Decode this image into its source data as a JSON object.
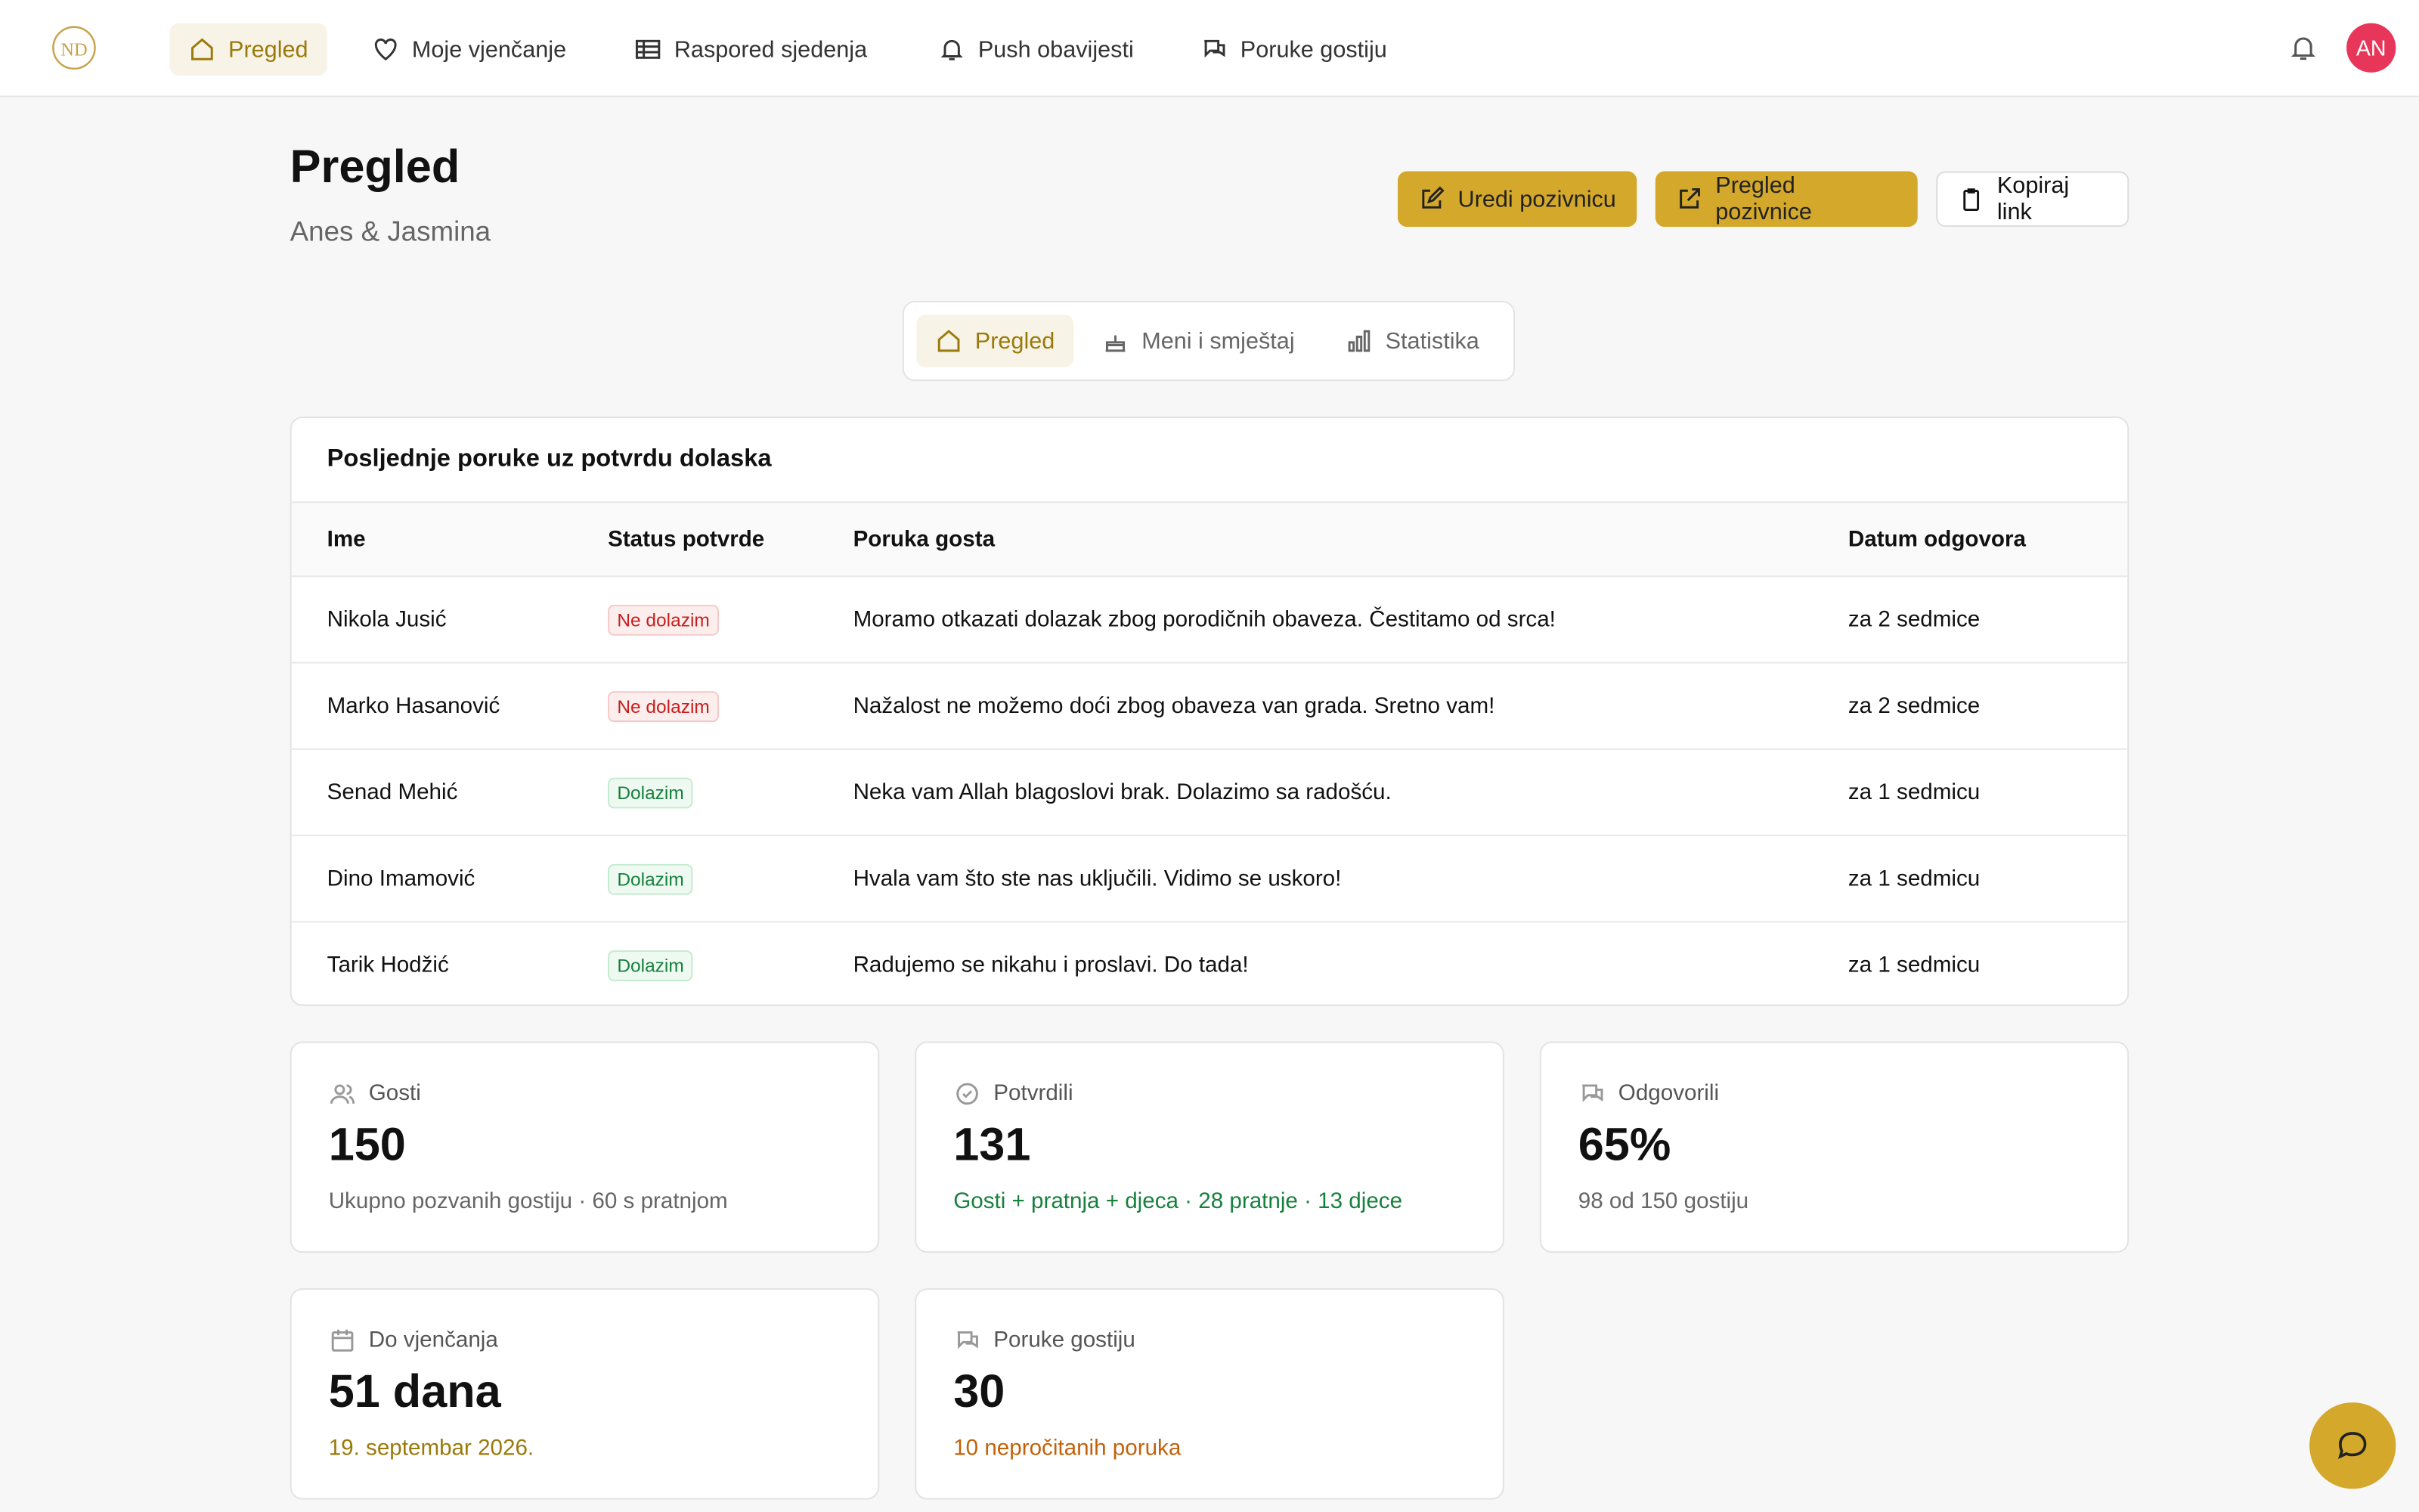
{
  "nav": {
    "items": [
      "Pregled",
      "Moje vjenčanje",
      "Raspored sjedenja",
      "Push obavijesti",
      "Poruke gostiju"
    ],
    "avatar": "AN"
  },
  "header": {
    "title": "Pregled",
    "subtitle": "Anes & Jasmina",
    "buttons": [
      "Uredi pozivnicu",
      "Pregled pozivnice",
      "Kopiraj link"
    ]
  },
  "tabs": [
    "Pregled",
    "Meni i smještaj",
    "Statistika"
  ],
  "table": {
    "title": "Posljednje poruke uz potvrdu dolaska",
    "columns": [
      "Ime",
      "Status potvrde",
      "Poruka gosta",
      "Datum odgovora"
    ],
    "rows": [
      [
        "Nikola Jusić",
        "Ne dolazim",
        "Moramo otkazati dolazak zbog porodičnih obaveza. Čestitamo od srca!",
        "za 2 sedmice"
      ],
      [
        "Marko Hasanović",
        "Ne dolazim",
        "Nažalost ne možemo doći zbog obaveza van grada. Sretno vam!",
        "za 2 sedmice"
      ],
      [
        "Senad Mehić",
        "Dolazim",
        "Neka vam Allah blagoslovi brak. Dolazimo sa radošću.",
        "za 1 sedmicu"
      ],
      [
        "Dino Imamović",
        "Dolazim",
        "Hvala vam što ste nas uključili. Vidimo se uskoro!",
        "za 1 sedmicu"
      ],
      [
        "Tarik Hodžić",
        "Dolazim",
        "Radujemo se nikahu i proslavi. Do tada!",
        "za 1 sedmicu"
      ]
    ]
  },
  "cards": [
    {
      "label": "Gosti",
      "value": "150",
      "note": "Ukupno pozvanih gostiju · 60 s pratnjom"
    },
    {
      "label": "Potvrdili",
      "value": "131",
      "note": "Gosti + pratnja + djeca · 28 pratnje · 13 djece"
    },
    {
      "label": "Odgovorili",
      "value": "65%",
      "note": "98 od 150 gostiju"
    },
    {
      "label": "Do vjenčanja",
      "value": "51 dana",
      "note": "19. septembar 2026."
    },
    {
      "label": "Poruke gostiju",
      "value": "30",
      "note": "10 nepročitanih poruka"
    }
  ]
}
